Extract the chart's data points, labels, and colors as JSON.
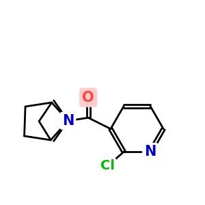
{
  "background_color": "#ffffff",
  "atom_colors": {
    "N": "#0000cc",
    "O": "#ff4444",
    "Cl": "#00bb00",
    "C": "#000000"
  },
  "bond_color": "#000000",
  "bond_width": 2.0,
  "figsize": [
    3.0,
    3.0
  ],
  "dpi": 100,
  "xlim": [
    0,
    10
  ],
  "ylim": [
    0.5,
    10.5
  ]
}
